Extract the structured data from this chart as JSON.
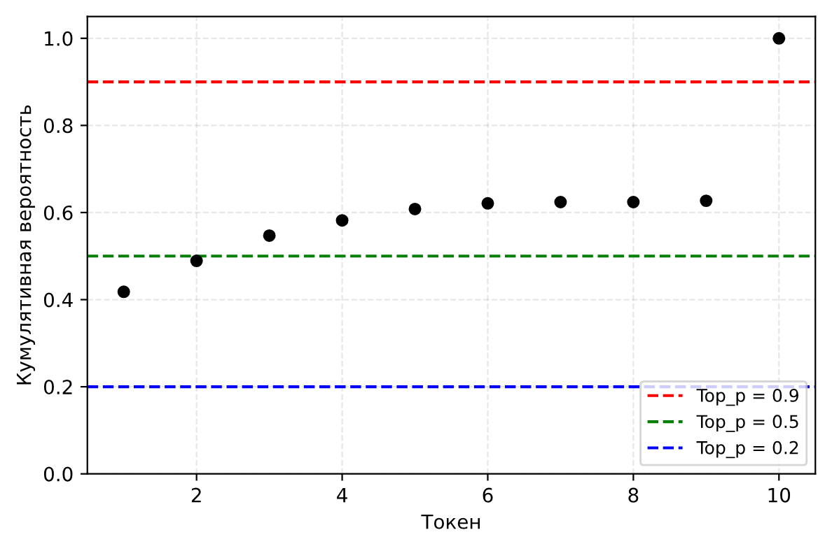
{
  "chart_data": {
    "type": "scatter",
    "xlabel": "Токен",
    "ylabel": "Кумулятивная вероятность",
    "x": [
      1,
      2,
      3,
      4,
      5,
      6,
      7,
      8,
      9,
      10
    ],
    "series": [
      {
        "color": "#000000",
        "values": [
          0.418,
          0.489,
          0.547,
          0.582,
          0.608,
          0.621,
          0.624,
          0.624,
          0.627,
          1.0
        ]
      }
    ],
    "marker": "circle",
    "xlim": [
      0.5,
      10.5
    ],
    "ylim": [
      0,
      1.05
    ],
    "xticks": [
      2,
      4,
      6,
      8,
      10
    ],
    "yticks": [
      {
        "value": 0,
        "label": "0.0"
      },
      0.2,
      0.4,
      0.6,
      0.8,
      {
        "value": 1,
        "label": "1.0"
      }
    ],
    "ref_lines": [
      {
        "axis": "y",
        "value": 0.9,
        "label": "Top_p = 0.9",
        "color": "#ff0000",
        "line_style": "dashed"
      },
      {
        "axis": "y",
        "value": 0.5,
        "label": "Top_p = 0.5",
        "color": "#008000",
        "line_style": "dashed"
      },
      {
        "axis": "y",
        "value": 0.2,
        "label": "Top_p = 0.2",
        "color": "#0000ff",
        "line_style": "dashed"
      }
    ],
    "grid": true,
    "legend": "bottom right"
  }
}
